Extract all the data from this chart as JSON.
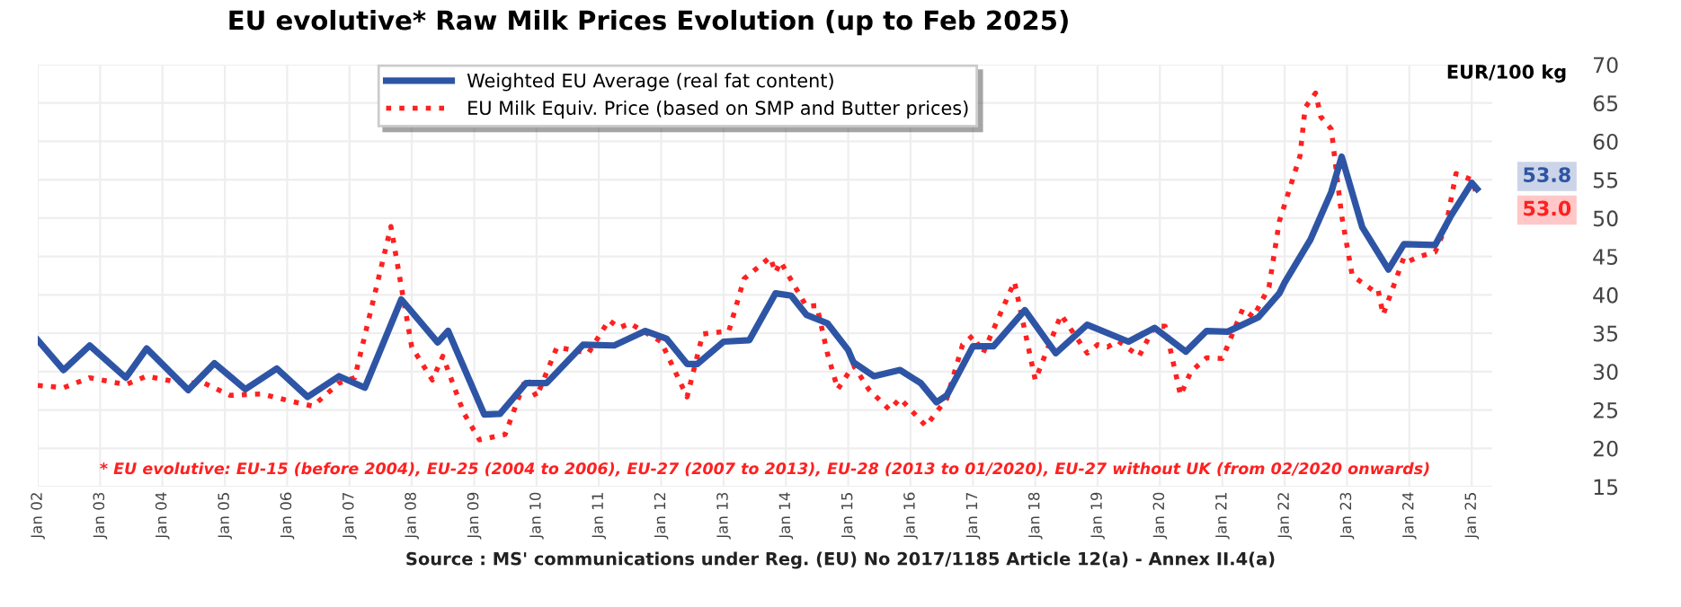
{
  "chart_data": {
    "type": "line",
    "title": "EU evolutive* Raw Milk Prices Evolution (up to Feb 2025)",
    "ylabel": "EUR/100 kg",
    "legend": "top",
    "grid": true,
    "marker": "none",
    "xlim": [
      "2002-01",
      "2025-05"
    ],
    "xticks": [
      {
        "value": "2002-01",
        "label": "Jan 02"
      },
      {
        "value": "2003-01",
        "label": "Jan 03"
      },
      {
        "value": "2004-01",
        "label": "Jan 04"
      },
      {
        "value": "2005-01",
        "label": "Jan 05"
      },
      {
        "value": "2006-01",
        "label": "Jan 06"
      },
      {
        "value": "2007-01",
        "label": "Jan 07"
      },
      {
        "value": "2008-01",
        "label": "Jan 08"
      },
      {
        "value": "2009-01",
        "label": "Jan 09"
      },
      {
        "value": "2010-01",
        "label": "Jan 10"
      },
      {
        "value": "2011-01",
        "label": "Jan 11"
      },
      {
        "value": "2012-01",
        "label": "Jan 12"
      },
      {
        "value": "2013-01",
        "label": "Jan 13"
      },
      {
        "value": "2014-01",
        "label": "Jan 14"
      },
      {
        "value": "2015-01",
        "label": "Jan 15"
      },
      {
        "value": "2016-01",
        "label": "Jan 16"
      },
      {
        "value": "2017-01",
        "label": "Jan 17"
      },
      {
        "value": "2018-01",
        "label": "Jan 18"
      },
      {
        "value": "2019-01",
        "label": "Jan 19"
      },
      {
        "value": "2020-01",
        "label": "Jan 20"
      },
      {
        "value": "2021-01",
        "label": "Jan 21"
      },
      {
        "value": "2022-01",
        "label": "Jan 22"
      },
      {
        "value": "2023-01",
        "label": "Jan 23"
      },
      {
        "value": "2024-01",
        "label": "Jan 24"
      },
      {
        "value": "2025-01",
        "label": "Jan 25"
      }
    ],
    "ylim": [
      15,
      70
    ],
    "yticks": [
      15,
      20,
      25,
      30,
      35,
      40,
      45,
      50,
      55,
      60,
      65,
      70
    ],
    "series": [
      {
        "name": "Weighted EU Average (real fat content)",
        "color": "#2e55a5",
        "line_style": "solid",
        "x": [
          "2002-01",
          "2002-06",
          "2002-11",
          "2003-06",
          "2003-10",
          "2004-06",
          "2004-11",
          "2005-05",
          "2005-11",
          "2006-05",
          "2006-11",
          "2007-04",
          "2007-11",
          "2008-06",
          "2008-08",
          "2009-03",
          "2009-06",
          "2009-11",
          "2010-03",
          "2010-10",
          "2011-04",
          "2011-10",
          "2012-02",
          "2012-06",
          "2012-08",
          "2013-01",
          "2013-06",
          "2013-11",
          "2014-02",
          "2014-05",
          "2014-09",
          "2015-01",
          "2015-02",
          "2015-06",
          "2015-11",
          "2016-03",
          "2016-06",
          "2016-08",
          "2017-01",
          "2017-05",
          "2017-11",
          "2018-05",
          "2018-11",
          "2019-07",
          "2019-12",
          "2020-06",
          "2020-10",
          "2021-02",
          "2021-08",
          "2021-12",
          "2022-01",
          "2022-06",
          "2022-10",
          "2022-12",
          "2023-04",
          "2023-09",
          "2023-12",
          "2024-06",
          "2024-09",
          "2025-01",
          "2025-02"
        ],
        "values": [
          34.1,
          30.2,
          33.4,
          29.2,
          33.0,
          27.6,
          31.1,
          27.7,
          30.4,
          26.7,
          29.4,
          27.9,
          39.4,
          33.8,
          35.3,
          24.4,
          24.5,
          28.5,
          28.5,
          33.5,
          33.4,
          35.3,
          34.3,
          31.0,
          31.0,
          33.9,
          34.1,
          40.2,
          39.9,
          37.4,
          36.3,
          32.8,
          31.2,
          29.4,
          30.2,
          28.5,
          26.0,
          26.9,
          33.3,
          33.3,
          38.0,
          32.4,
          36.1,
          33.9,
          35.7,
          32.6,
          35.3,
          35.2,
          37.1,
          40.2,
          41.6,
          47.2,
          53.4,
          58.0,
          48.8,
          43.3,
          46.6,
          46.5,
          50.3,
          54.6,
          53.8
        ]
      },
      {
        "name": "EU Milk Equiv. Price (based on SMP and Butter prices)",
        "color": "#ff2020",
        "line_style": "dotted",
        "x": [
          "2002-01",
          "2002-06",
          "2002-11",
          "2003-06",
          "2003-10",
          "2004-05",
          "2004-09",
          "2005-02",
          "2005-08",
          "2006-02",
          "2006-06",
          "2006-11",
          "2007-02",
          "2007-09",
          "2008-01",
          "2008-05",
          "2008-07",
          "2008-11",
          "2009-02",
          "2009-07",
          "2009-11",
          "2010-01",
          "2010-05",
          "2010-11",
          "2011-03",
          "2011-05",
          "2011-07",
          "2012-01",
          "2012-06",
          "2012-09",
          "2013-02",
          "2013-05",
          "2013-10",
          "2013-11",
          "2013-12",
          "2014-05",
          "2014-07",
          "2014-09",
          "2014-11",
          "2015-02",
          "2015-05",
          "2015-09",
          "2015-11",
          "2016-04",
          "2016-08",
          "2016-11",
          "2017-01",
          "2017-03",
          "2017-07",
          "2017-09",
          "2018-01",
          "2018-06",
          "2018-11",
          "2019-01",
          "2019-03",
          "2019-05",
          "2019-09",
          "2019-12",
          "2020-02",
          "2020-05",
          "2020-07",
          "2020-10",
          "2021-01",
          "2021-05",
          "2021-07",
          "2021-10",
          "2021-12",
          "2022-04",
          "2022-05",
          "2022-07",
          "2022-08",
          "2022-10",
          "2022-12",
          "2023-02",
          "2023-06",
          "2023-07",
          "2023-08",
          "2023-12",
          "2024-01",
          "2024-03",
          "2024-06",
          "2024-08",
          "2024-10",
          "2025-01",
          "2025-02"
        ],
        "values": [
          28.2,
          27.9,
          29.2,
          28.3,
          29.4,
          28.5,
          28.5,
          26.9,
          27.1,
          26.1,
          25.5,
          28.5,
          29.2,
          48.9,
          33.2,
          28.9,
          32.0,
          24.6,
          21.1,
          21.8,
          29.2,
          26.7,
          33.2,
          32.4,
          36.7,
          35.7,
          36.3,
          33.9,
          26.7,
          34.9,
          35.3,
          42.1,
          44.9,
          42.9,
          44.3,
          38.5,
          38.6,
          32.4,
          27.7,
          30.8,
          27.7,
          25.0,
          26.5,
          22.9,
          26.5,
          33.5,
          34.7,
          32.4,
          38.6,
          41.7,
          28.9,
          37.4,
          32.4,
          33.5,
          33.2,
          34.0,
          32.0,
          35.9,
          35.9,
          26.9,
          30.0,
          31.8,
          31.7,
          38.2,
          37.1,
          41.0,
          49.6,
          58.1,
          64.4,
          66.3,
          63.2,
          61.6,
          50.3,
          42.5,
          40.6,
          40.8,
          37.4,
          44.9,
          44.4,
          45.0,
          45.6,
          48.8,
          55.8,
          55.0,
          53.0
        ]
      }
    ],
    "annotations": [
      "* EU evolutive: EU-15 (before 2004), EU-25 (2004 to 2006), EU-27 (2007 to 2013), EU-28 (2013 to 01/2020), EU-27 without UK (from 02/2020 onwards)",
      "Source : MS' communications under Reg. (EU) No 2017/1185 Article 12(a) - Annex II.4(a)",
      {
        "text": "53.8",
        "x": "2025-02",
        "y": 53.8
      },
      {
        "text": "53.0",
        "x": "2025-02",
        "y": 53.0
      }
    ]
  }
}
